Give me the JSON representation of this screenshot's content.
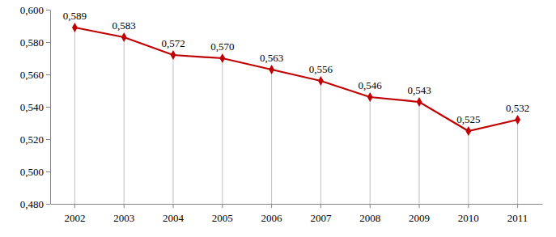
{
  "chart_data": {
    "type": "line",
    "categories": [
      "2002",
      "2003",
      "2004",
      "2005",
      "2006",
      "2007",
      "2008",
      "2009",
      "2010",
      "2011"
    ],
    "values": [
      0.589,
      0.583,
      0.572,
      0.57,
      0.563,
      0.556,
      0.546,
      0.543,
      0.525,
      0.532
    ],
    "value_labels": [
      "0,589",
      "0,583",
      "0,572",
      "0,570",
      "0,563",
      "0,556",
      "0,546",
      "0,543",
      "0,525",
      "0,532"
    ],
    "data_labels": true,
    "color": "#c00000",
    "marker": "diamond",
    "line_style": "solid",
    "ylim": [
      0.48,
      0.6
    ],
    "yticks": [
      {
        "value": 0.48,
        "label": "0,480"
      },
      {
        "value": 0.5,
        "label": "0,500"
      },
      {
        "value": 0.52,
        "label": "0,520"
      },
      {
        "value": 0.54,
        "label": "0,540"
      },
      {
        "value": 0.56,
        "label": "0,560"
      },
      {
        "value": 0.58,
        "label": "0,580"
      },
      {
        "value": 0.6,
        "label": "0,600"
      }
    ],
    "grid": false
  }
}
